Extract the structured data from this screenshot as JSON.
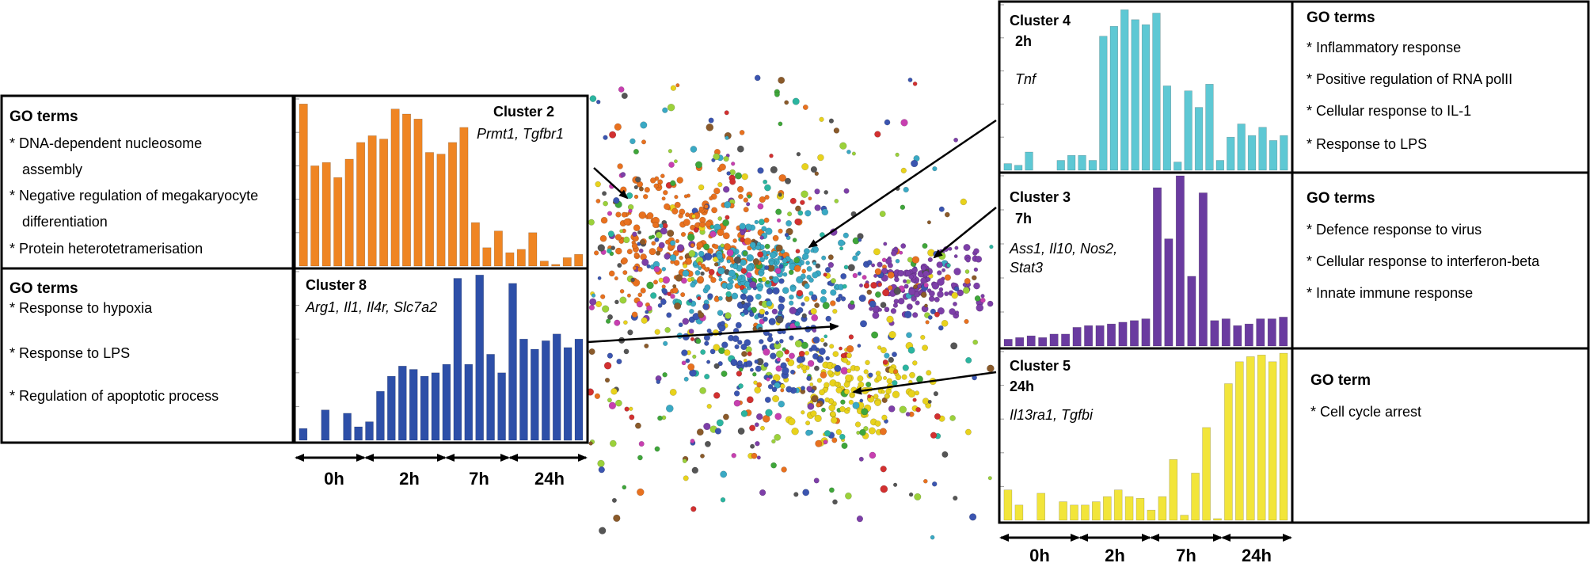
{
  "figure": {
    "time_points": [
      "0h",
      "2h",
      "7h",
      "24h"
    ],
    "scatter_colors": [
      "#e8711f",
      "#3aa9c4",
      "#3b55b0",
      "#7d3fa8",
      "#e8d21c",
      "#3fa63a",
      "#d23030",
      "#8a5a2a",
      "#2bb5a0",
      "#c73fb0",
      "#9bd13a",
      "#555555"
    ]
  },
  "chart_data": [
    {
      "type": "bar",
      "cluster": "Cluster 2",
      "time": "",
      "genes": "Prmt1, Tgfbr1",
      "color": "#ef8523",
      "ylim": [
        0,
        1
      ],
      "values": [
        0.97,
        0.6,
        0.62,
        0.53,
        0.64,
        0.74,
        0.78,
        0.76,
        0.94,
        0.91,
        0.88,
        0.68,
        0.67,
        0.74,
        0.83,
        0.26,
        0.11,
        0.21,
        0.08,
        0.1,
        0.2,
        0.03,
        0.01,
        0.05,
        0.07
      ],
      "go_title": "GO terms",
      "go_terms": [
        "* DNA-dependent nucleosome",
        "assembly",
        "* Negative regulation of megakaryocyte",
        "differentiation",
        "* Protein heterotetramerisation"
      ]
    },
    {
      "type": "bar",
      "cluster": "Cluster 8",
      "time": "",
      "genes": "Arg1, Il1, Il4r, Slc7a2",
      "color": "#2d4fa8",
      "ylim": [
        0,
        1
      ],
      "values": [
        0.07,
        0.0,
        0.18,
        0.0,
        0.16,
        0.08,
        0.11,
        0.29,
        0.38,
        0.44,
        0.42,
        0.38,
        0.4,
        0.45,
        0.96,
        0.45,
        0.98,
        0.51,
        0.4,
        0.93,
        0.6,
        0.54,
        0.59,
        0.63,
        0.55,
        0.6
      ],
      "go_title": "GO terms",
      "go_terms": [
        "* Response to hypoxia",
        "* Response to LPS",
        "* Regulation of apoptotic process"
      ]
    },
    {
      "type": "bar",
      "cluster": "Cluster 4",
      "time": "2h",
      "genes": "Tnf",
      "color": "#5ec8d4",
      "ylim": [
        0,
        1
      ],
      "values": [
        0.04,
        0.03,
        0.11,
        0.0,
        0.0,
        0.06,
        0.09,
        0.09,
        0.06,
        0.81,
        0.87,
        0.97,
        0.91,
        0.88,
        0.95,
        0.51,
        0.05,
        0.48,
        0.38,
        0.52,
        0.06,
        0.2,
        0.28,
        0.21,
        0.26,
        0.18,
        0.21
      ],
      "go_title": "GO terms",
      "go_terms": [
        "* Inflammatory response",
        "* Positive regulation of RNA polII",
        "* Cellular response to IL-1",
        "* Response to LPS"
      ]
    },
    {
      "type": "bar",
      "cluster": "Cluster 3",
      "time": "7h",
      "genes": "Ass1, Il10, Nos2, Stat3",
      "color": "#6a3ba0",
      "ylim": [
        0,
        1
      ],
      "values": [
        0.04,
        0.05,
        0.06,
        0.05,
        0.07,
        0.07,
        0.11,
        0.12,
        0.12,
        0.13,
        0.14,
        0.15,
        0.16,
        0.93,
        0.63,
        1.0,
        0.41,
        0.9,
        0.15,
        0.16,
        0.12,
        0.13,
        0.16,
        0.16,
        0.17
      ],
      "go_title": "GO terms",
      "go_terms": [
        "* Defence response to virus",
        "* Cellular response to interferon-beta",
        "* Innate immune response"
      ]
    },
    {
      "type": "bar",
      "cluster": "Cluster 5",
      "time": "24h",
      "genes": "Il13ra1, Tgfbi",
      "color": "#f2e53a",
      "ylim": [
        0,
        1
      ],
      "values": [
        0.18,
        0.09,
        0.0,
        0.16,
        0.0,
        0.11,
        0.09,
        0.09,
        0.11,
        0.14,
        0.18,
        0.14,
        0.13,
        0.06,
        0.14,
        0.36,
        0.03,
        0.28,
        0.55,
        0.01,
        0.81,
        0.94,
        0.97,
        0.98,
        0.94,
        0.99
      ],
      "go_title": "GO term",
      "go_terms": [
        "* Cell cycle arrest"
      ]
    }
  ]
}
